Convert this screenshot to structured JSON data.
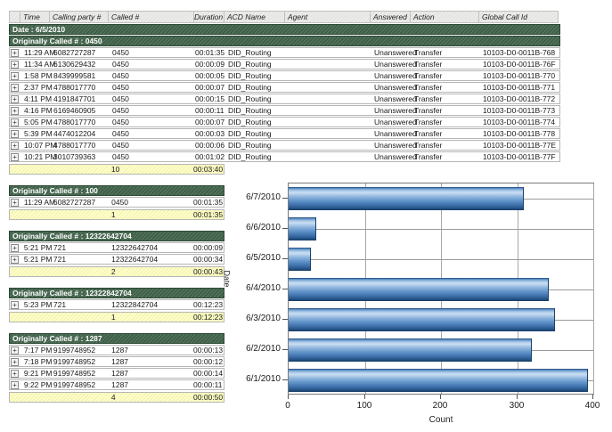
{
  "table": {
    "columns": [
      "Time",
      "Calling party #",
      "Called #",
      "Duration",
      "ACD Name",
      "Agent",
      "Answered",
      "Action",
      "Global Call Id"
    ],
    "date_band": "Date : 6/5/2010",
    "groups": [
      {
        "header": "Originally Called # : 0450",
        "full_width": true,
        "rows": [
          [
            "11:29 AM",
            "6082727287",
            "0450",
            "00:01:35",
            "DID_Routing",
            "",
            "Unanswered",
            "Transfer",
            "10103-D0-0011B-768"
          ],
          [
            "11:34 AM",
            "6130629432",
            "0450",
            "00:00:09",
            "DID_Routing",
            "",
            "Unanswered",
            "Transfer",
            "10103-D0-0011B-76F"
          ],
          [
            "1:58 PM",
            "8439999581",
            "0450",
            "00:00:05",
            "DID_Routing",
            "",
            "Unanswered",
            "Transfer",
            "10103-D0-0011B-770"
          ],
          [
            "2:37 PM",
            "4788017770",
            "0450",
            "00:00:07",
            "DID_Routing",
            "",
            "Unanswered",
            "Transfer",
            "10103-D0-0011B-771"
          ],
          [
            "4:11 PM",
            "4191847701",
            "0450",
            "00:00:15",
            "DID_Routing",
            "",
            "Unanswered",
            "Transfer",
            "10103-D0-0011B-772"
          ],
          [
            "4:16 PM",
            "6169460905",
            "0450",
            "00:00:11",
            "DID_Routing",
            "",
            "Unanswered",
            "Transfer",
            "10103-D0-0011B-773"
          ],
          [
            "5:05 PM",
            "4788017770",
            "0450",
            "00:00:07",
            "DID_Routing",
            "",
            "Unanswered",
            "Transfer",
            "10103-D0-0011B-774"
          ],
          [
            "5:39 PM",
            "4474012204",
            "0450",
            "00:00:03",
            "DID_Routing",
            "",
            "Unanswered",
            "Transfer",
            "10103-D0-0011B-778"
          ],
          [
            "10:07 PM",
            "4788017770",
            "0450",
            "00:00:06",
            "DID_Routing",
            "",
            "Unanswered",
            "Transfer",
            "10103-D0-0011B-77E"
          ],
          [
            "10:21 PM",
            "3010739363",
            "0450",
            "00:01:02",
            "DID_Routing",
            "",
            "Unanswered",
            "Transfer",
            "10103-D0-0011B-77F"
          ]
        ],
        "summary": {
          "count": "10",
          "duration": "00:03:40"
        }
      },
      {
        "header": "Originally Called # : 100",
        "full_width": false,
        "rows": [
          [
            "11:29 AM",
            "6082727287",
            "0450",
            "00:01:35"
          ]
        ],
        "summary": {
          "count": "1",
          "duration": "00:01:35"
        }
      },
      {
        "header": "Originally Called # : 12322642704",
        "full_width": false,
        "rows": [
          [
            "5:21 PM",
            "721",
            "12322642704",
            "00:00:09"
          ],
          [
            "5:21 PM",
            "721",
            "12322642704",
            "00:00:34"
          ]
        ],
        "summary": {
          "count": "2",
          "duration": "00:00:43"
        }
      },
      {
        "header": "Originally Called # : 12322842704",
        "full_width": false,
        "rows": [
          [
            "5:23 PM",
            "721",
            "12322842704",
            "00:12:23"
          ]
        ],
        "summary": {
          "count": "1",
          "duration": "00:12:23"
        }
      },
      {
        "header": "Originally Called # : 1287",
        "full_width": false,
        "rows": [
          [
            "7:17 PM",
            "9199748952",
            "1287",
            "00:00:13"
          ],
          [
            "7:18 PM",
            "9199748952",
            "1287",
            "00:00:12"
          ],
          [
            "9:21 PM",
            "9199748952",
            "1287",
            "00:00:14"
          ],
          [
            "9:22 PM",
            "9199748952",
            "1287",
            "00:00:11"
          ]
        ],
        "summary": {
          "count": "4",
          "duration": "00:00:50"
        }
      }
    ],
    "expand_glyph": "+"
  },
  "chart_data": {
    "type": "bar",
    "orientation": "horizontal",
    "categories": [
      "6/7/2010",
      "6/6/2010",
      "6/5/2010",
      "6/4/2010",
      "6/3/2010",
      "6/2/2010",
      "6/1/2010"
    ],
    "values": [
      308,
      35,
      28,
      340,
      348,
      318,
      392
    ],
    "title": "",
    "xlabel": "Count",
    "ylabel": "Date",
    "xlim": [
      0,
      400
    ],
    "xticks": [
      0,
      100,
      200,
      300,
      400
    ],
    "grid": "on",
    "legend": "none",
    "bar_color_light": "#cadef2",
    "bar_color_mid": "#5e92c8",
    "bar_color_dark": "#163a63"
  },
  "colors": {
    "group_band_green": "#3f6048",
    "summary_yellow": "#ffffc9",
    "header_gray": "#ececea",
    "row_border": "#b6b6b6"
  }
}
